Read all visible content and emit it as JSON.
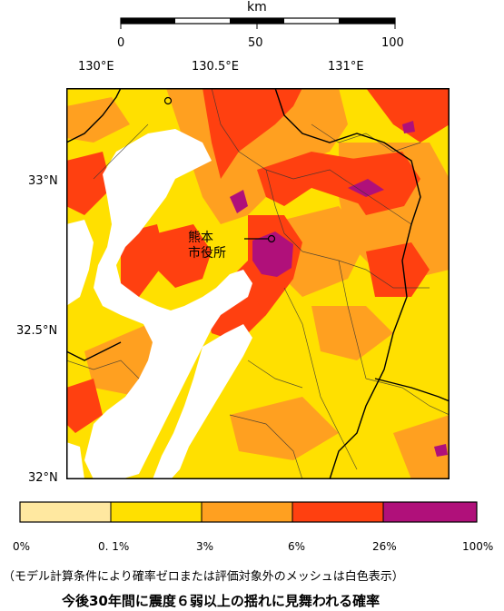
{
  "scale_bar": {
    "unit": "km",
    "ticks": [
      "0",
      "50",
      "100"
    ]
  },
  "map": {
    "longitude_labels": [
      "130°E",
      "130.5°E",
      "131°E"
    ],
    "latitude_labels": [
      "33°N",
      "32.5°N",
      "32°N"
    ],
    "city": {
      "line1": "熊本",
      "line2": "市役所"
    }
  },
  "legend": {
    "labels": [
      "0%",
      "0. 1%",
      "3%",
      "6%",
      "26%",
      "100%"
    ],
    "colors": [
      "#ffe8a0",
      "#ffe000",
      "#ffa020",
      "#ff4010",
      "#b0107a"
    ]
  },
  "note": "（モデル計算条件により確率ゼロまたは評価対象外のメッシュは白色表示）",
  "title": "今後30年間に震度６弱以上の揺れに見舞われる確率",
  "colors": {
    "sea": "#ffffff",
    "low": "#ffe000",
    "mid": "#ffa020",
    "high": "#ff4010",
    "highest": "#b0107a",
    "lowest": "#ffe8a0"
  }
}
